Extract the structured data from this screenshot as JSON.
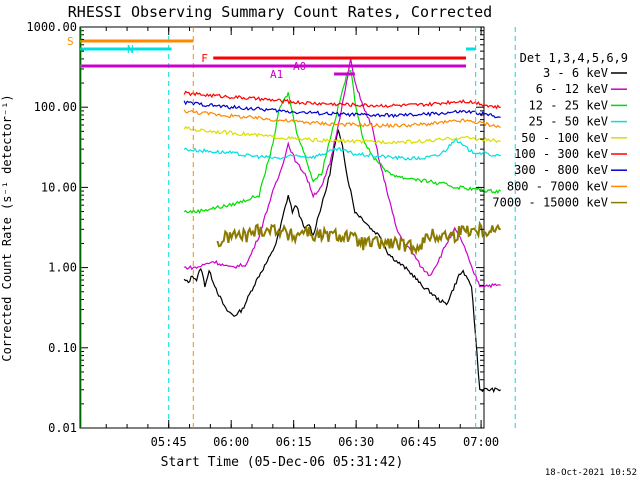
{
  "chart_data": {
    "type": "line",
    "title": "RHESSI Observing Summary Count Rates, Corrected",
    "xlabel": "Start Time (05-Dec-06 05:31:42)",
    "ylabel": "Corrected Count Rate (s⁻¹ detector⁻¹)",
    "yscale": "log",
    "ylim": [
      0.01,
      1000
    ],
    "xlim_minutes": [
      -8,
      89
    ],
    "x_ticks": [
      "05:45",
      "06:00",
      "06:15",
      "06:30",
      "06:45",
      "07:00"
    ],
    "x_tick_minutes": [
      13.3,
      28.3,
      43.3,
      58.3,
      73.3,
      88.3
    ],
    "y_ticks": [
      "1000.00",
      "100.00",
      "10.00",
      "1.00",
      "0.10",
      "0.01"
    ],
    "y_tick_values": [
      1000,
      100,
      10,
      1,
      0.1,
      0.01
    ],
    "legend_title": "Det 1,3,4,5,6,9",
    "legend_placement": "right",
    "timestamp": "18-Oct-2021 10:52",
    "series": [
      {
        "name": "3 - 6 keV",
        "color": "#000000",
        "x": [
          17,
          18,
          19,
          20,
          21,
          22,
          23,
          25,
          27,
          29,
          31,
          33,
          35,
          37,
          38,
          39,
          40,
          41,
          42,
          43,
          44,
          45,
          46,
          47,
          48,
          49,
          50,
          51,
          52,
          53,
          54,
          55,
          56,
          57,
          58,
          60,
          62,
          64,
          66,
          68,
          70,
          72,
          74,
          76,
          78,
          80,
          82,
          83,
          84,
          85,
          86,
          88,
          90,
          92,
          93
        ],
        "y": [
          0.7,
          0.65,
          0.8,
          0.7,
          1.0,
          0.6,
          0.9,
          0.5,
          0.3,
          0.25,
          0.3,
          0.5,
          0.8,
          1.2,
          1.5,
          2.0,
          3.0,
          5.0,
          8.0,
          5.0,
          6.0,
          4.0,
          3.0,
          3.5,
          2.5,
          4.0,
          6.0,
          9.0,
          15,
          30,
          50,
          35,
          15,
          9.0,
          5.0,
          4.0,
          3.0,
          2.5,
          1.5,
          1.2,
          1.0,
          0.8,
          0.6,
          0.5,
          0.4,
          0.35,
          0.6,
          0.8,
          0.9,
          0.7,
          0.6,
          0.03,
          0.03,
          0.03,
          0.03
        ]
      },
      {
        "name": "6 - 12 keV",
        "color": "#cc00cc",
        "x": [
          17,
          20,
          24,
          28,
          32,
          35,
          38,
          40,
          42,
          44,
          46,
          48,
          50,
          52,
          54,
          56,
          57,
          58,
          59,
          60,
          62,
          64,
          66,
          68,
          70,
          72,
          74,
          76,
          78,
          80,
          82,
          84,
          86,
          88,
          90,
          92,
          93
        ],
        "y": [
          1.0,
          1.0,
          1.2,
          1.0,
          1.1,
          2.5,
          8.0,
          15,
          35,
          20,
          15,
          8.0,
          10,
          20,
          60,
          200,
          400,
          200,
          150,
          100,
          60,
          20,
          8.0,
          3.0,
          2.0,
          1.5,
          1.0,
          0.8,
          1.2,
          2.0,
          3.0,
          2.0,
          1.0,
          0.6,
          0.6,
          0.6,
          0.6
        ]
      },
      {
        "name": "12 - 25 keV",
        "color": "#00dd00",
        "x": [
          17,
          20,
          24,
          28,
          32,
          35,
          38,
          40,
          42,
          44,
          46,
          48,
          50,
          52,
          54,
          56,
          57,
          58,
          60,
          62,
          64,
          66,
          68,
          70,
          72,
          74,
          76,
          78,
          80,
          82,
          84,
          86,
          88,
          90,
          92,
          93
        ],
        "y": [
          5.0,
          5.0,
          5.5,
          6.0,
          7.0,
          8.0,
          30,
          100,
          150,
          50,
          25,
          12,
          15,
          40,
          100,
          250,
          300,
          120,
          40,
          25,
          20,
          15,
          14,
          13,
          13,
          12,
          12,
          11,
          11,
          10,
          10,
          9.5,
          9.5,
          9.0,
          9.0,
          9.0
        ]
      },
      {
        "name": "25 - 50 keV",
        "color": "#00e0e0",
        "x": [
          17,
          20,
          24,
          28,
          32,
          36,
          40,
          44,
          48,
          52,
          54,
          56,
          58,
          62,
          66,
          70,
          74,
          78,
          80,
          82,
          84,
          86,
          88,
          90,
          92,
          93
        ],
        "y": [
          30,
          29,
          28,
          27,
          25,
          24,
          23,
          25,
          24,
          28,
          30,
          28,
          26,
          25,
          24,
          23,
          23,
          25,
          30,
          40,
          33,
          28,
          27,
          26,
          25,
          25
        ]
      },
      {
        "name": "50 - 100 keV",
        "color": "#dddd00",
        "x": [
          17,
          20,
          24,
          28,
          32,
          36,
          40,
          44,
          48,
          52,
          56,
          60,
          64,
          68,
          72,
          76,
          80,
          84,
          88,
          90,
          92,
          93
        ],
        "y": [
          55,
          52,
          50,
          48,
          46,
          44,
          42,
          40,
          39,
          38,
          38,
          37,
          37,
          37,
          37,
          38,
          40,
          42,
          40,
          39,
          38,
          38
        ]
      },
      {
        "name": "100 - 300 keV",
        "color": "#ff0000",
        "x": [
          17,
          20,
          24,
          28,
          32,
          36,
          40,
          44,
          48,
          52,
          56,
          60,
          64,
          68,
          72,
          76,
          80,
          84,
          88,
          90,
          92,
          93
        ],
        "y": [
          150,
          145,
          140,
          135,
          130,
          125,
          120,
          115,
          112,
          110,
          108,
          106,
          105,
          105,
          106,
          108,
          115,
          120,
          112,
          105,
          100,
          100
        ]
      },
      {
        "name": "300 - 800 keV",
        "color": "#0000cc",
        "x": [
          17,
          20,
          24,
          28,
          32,
          36,
          40,
          44,
          48,
          52,
          56,
          60,
          64,
          68,
          72,
          76,
          80,
          84,
          88,
          90,
          92,
          93
        ],
        "y": [
          115,
          110,
          105,
          100,
          97,
          94,
          90,
          87,
          85,
          83,
          81,
          80,
          79,
          79,
          80,
          82,
          85,
          88,
          84,
          80,
          77,
          75
        ]
      },
      {
        "name": "800 - 7000 keV",
        "color": "#ff8800",
        "x": [
          17,
          20,
          24,
          28,
          32,
          36,
          40,
          44,
          48,
          52,
          56,
          60,
          64,
          68,
          72,
          76,
          80,
          84,
          88,
          90,
          92,
          93
        ],
        "y": [
          90,
          86,
          82,
          78,
          75,
          72,
          69,
          66,
          64,
          62,
          61,
          60,
          59,
          59,
          60,
          62,
          65,
          68,
          64,
          61,
          58,
          56
        ]
      },
      {
        "name": "7000 - 15000 keV",
        "color": "#8b7a00",
        "x": [
          25,
          28,
          32,
          35,
          38,
          40,
          42,
          44,
          46,
          48,
          50,
          52,
          54,
          56,
          58,
          60,
          62,
          64,
          66,
          68,
          70,
          72,
          74,
          76,
          78,
          80,
          82,
          84,
          86,
          88,
          90,
          92,
          93
        ],
        "y": [
          2.0,
          2.5,
          2.5,
          3.0,
          3.0,
          3.0,
          2.5,
          2.5,
          3.0,
          2.5,
          2.5,
          2.5,
          2.5,
          2.5,
          2.2,
          2.0,
          2.0,
          2.0,
          2.0,
          2.0,
          1.8,
          1.8,
          2.0,
          2.5,
          2.5,
          2.5,
          2.5,
          3.0,
          3.0,
          3.0,
          3.0,
          3.0,
          3.0
        ]
      }
    ]
  },
  "annotations": {
    "flags": [
      {
        "label": "S",
        "color": "#ff8800",
        "row": 0,
        "x_start": -8,
        "x_end": 19.2
      },
      {
        "label": "N",
        "color": "#00e0e0",
        "row": 1,
        "x_start": -8,
        "x_end": 14
      },
      {
        "label": "N",
        "color": "#00e0e0",
        "row": 1,
        "x_start": 87,
        "x_end": 97
      },
      {
        "label": "F",
        "color": "#ff0000",
        "row": 2,
        "x_start": 24,
        "x_end": 87
      },
      {
        "label": "A0",
        "color": "#cc00cc",
        "row": 3,
        "x_start": -8,
        "x_end": 97
      },
      {
        "label": "A1",
        "color": "#cc00cc",
        "row": 4,
        "x_start": 53,
        "x_end": 58
      }
    ],
    "vlines": [
      {
        "x": 13.3,
        "color": "#00e0e0"
      },
      {
        "x": 19.2,
        "color": "#ff8800"
      },
      {
        "x": 87.0,
        "color": "#00e0e0"
      },
      {
        "x": 96.5,
        "color": "#00e0e0"
      }
    ]
  }
}
